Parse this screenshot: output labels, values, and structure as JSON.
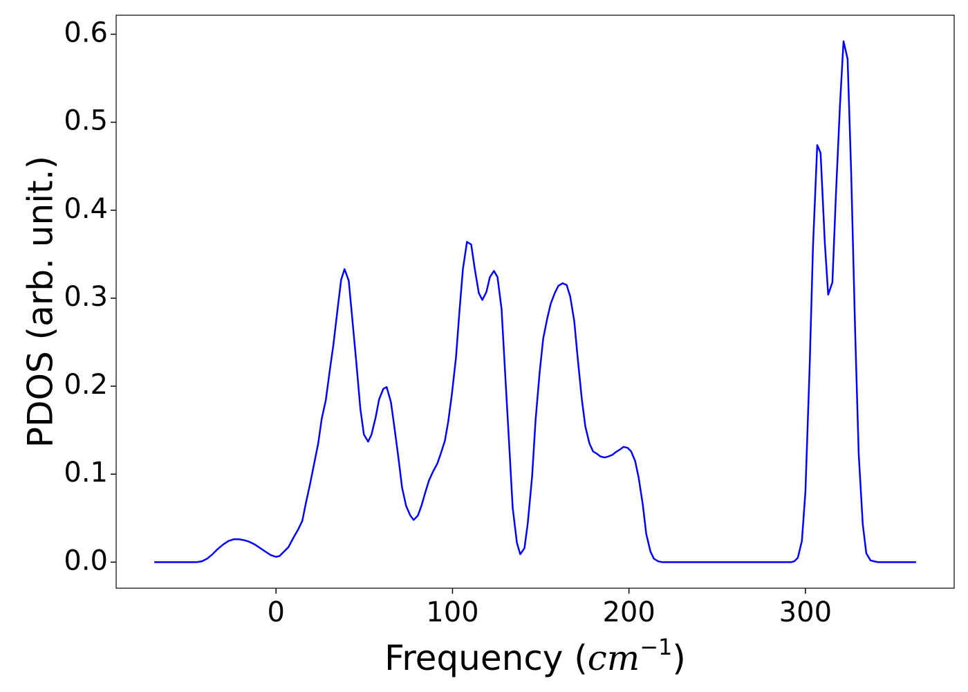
{
  "chart_data": {
    "type": "line",
    "ylabel": "PDOS (arb. unit.)",
    "xlabel": [
      "Frequency (",
      "cm",
      "−1",
      ")"
    ],
    "color": "#0000ff",
    "xlim": [
      -90.6,
      384.3
    ],
    "ylim": [
      -0.0296,
      0.6216
    ],
    "xticks": [
      0,
      100,
      200,
      300
    ],
    "yticks": [
      {
        "value": 0,
        "label": "0.0"
      },
      0.1,
      0.2,
      0.3,
      0.4,
      0.5,
      0.6
    ],
    "x": [
      -69,
      -45,
      -42,
      -39,
      -36,
      -33,
      -30,
      -27,
      -24,
      -21,
      -18,
      -15,
      -12,
      -9,
      -6,
      -3,
      0,
      2,
      4,
      7,
      10.2,
      12.5,
      14.9,
      16.9,
      19.2,
      21.6,
      23.9,
      25.9,
      28.2,
      30.6,
      32.5,
      34.9,
      36.9,
      38.8,
      41.2,
      43.1,
      45.5,
      47.8,
      49.8,
      52.2,
      54.1,
      56.5,
      58.4,
      60.8,
      62.7,
      65.1,
      67.1,
      69.4,
      71.4,
      73.7,
      76.1,
      78,
      80.4,
      82.4,
      84.7,
      86.7,
      89,
      91.4,
      93.3,
      95.7,
      97.6,
      99.6,
      102,
      103.9,
      105.9,
      108.2,
      110.6,
      112.5,
      114.9,
      116.9,
      119.2,
      121.2,
      123.5,
      125.5,
      127.8,
      129.8,
      132.2,
      134.1,
      136.5,
      138.4,
      140.8,
      142.7,
      145.1,
      147.1,
      149.4,
      151.4,
      153.7,
      155.7,
      158,
      160,
      162.4,
      164.7,
      166.7,
      169,
      171,
      173.3,
      175.3,
      177.6,
      179.6,
      182,
      183.9,
      186.3,
      188.2,
      190.6,
      192.5,
      194.9,
      196.9,
      199.2,
      201.2,
      203.5,
      205.5,
      207.8,
      209.8,
      212.2,
      214.1,
      216.5,
      218.8,
      292,
      293.7,
      295.7,
      298,
      300,
      302.4,
      304.3,
      306.7,
      308.6,
      311,
      312.9,
      315.3,
      317.3,
      319.6,
      321.6,
      323.9,
      325.9,
      328.2,
      330.2,
      332.5,
      334.5,
      336.9,
      338.8,
      341.2,
      362.7
    ],
    "values": [
      0,
      0,
      0.001,
      0.004,
      0.009,
      0.015,
      0.02,
      0.024,
      0.026,
      0.026,
      0.025,
      0.023,
      0.02,
      0.016,
      0.012,
      0.008,
      0.006,
      0.007,
      0.011,
      0.017,
      0.029,
      0.037,
      0.047,
      0.067,
      0.088,
      0.112,
      0.135,
      0.163,
      0.184,
      0.22,
      0.247,
      0.288,
      0.321,
      0.333,
      0.32,
      0.279,
      0.227,
      0.174,
      0.145,
      0.137,
      0.145,
      0.165,
      0.185,
      0.197,
      0.199,
      0.182,
      0.153,
      0.118,
      0.085,
      0.064,
      0.053,
      0.048,
      0.053,
      0.064,
      0.08,
      0.093,
      0.103,
      0.112,
      0.123,
      0.138,
      0.16,
      0.19,
      0.233,
      0.284,
      0.333,
      0.364,
      0.361,
      0.335,
      0.306,
      0.298,
      0.307,
      0.324,
      0.331,
      0.324,
      0.288,
      0.216,
      0.131,
      0.062,
      0.022,
      0.009,
      0.016,
      0.045,
      0.097,
      0.162,
      0.216,
      0.254,
      0.277,
      0.294,
      0.306,
      0.314,
      0.317,
      0.315,
      0.302,
      0.274,
      0.231,
      0.185,
      0.154,
      0.135,
      0.126,
      0.123,
      0.12,
      0.119,
      0.12,
      0.122,
      0.125,
      0.128,
      0.131,
      0.13,
      0.126,
      0.115,
      0.096,
      0.066,
      0.032,
      0.012,
      0.004,
      0.001,
      0,
      0,
      0.001,
      0.005,
      0.024,
      0.08,
      0.222,
      0.359,
      0.474,
      0.465,
      0.363,
      0.304,
      0.318,
      0.418,
      0.52,
      0.592,
      0.572,
      0.445,
      0.261,
      0.123,
      0.043,
      0.01,
      0.002,
      0.001,
      0,
      0
    ]
  }
}
